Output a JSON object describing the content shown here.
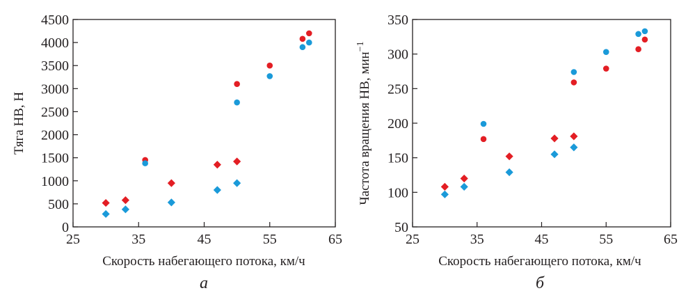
{
  "colors": {
    "red": "#e31e24",
    "blue": "#1a9ad9",
    "axis": "#231f20"
  },
  "chart_data": [
    {
      "type": "scatter",
      "panel_label": "а",
      "xlabel": "Скорость набегающего потока, км/ч",
      "ylabel": "Тяга НВ, Н",
      "xlim": [
        25,
        65
      ],
      "ylim": [
        0,
        4500
      ],
      "xticks": [
        25,
        35,
        45,
        55,
        65
      ],
      "yticks": [
        0,
        500,
        1000,
        1500,
        2000,
        2500,
        3000,
        3500,
        4000,
        4500
      ],
      "xtick_labels": [
        "25",
        "35",
        "45",
        "55",
        "65"
      ],
      "ytick_labels": [
        "0",
        "500",
        "1000",
        "1500",
        "2000",
        "2500",
        "3000",
        "3500",
        "4000",
        "4500"
      ],
      "grid": false,
      "series": [
        {
          "color": "red",
          "marker": "diamond",
          "points": [
            [
              30,
              520
            ],
            [
              33,
              580
            ],
            [
              40,
              950
            ],
            [
              47,
              1350
            ],
            [
              50,
              1420
            ]
          ]
        },
        {
          "color": "blue",
          "marker": "diamond",
          "points": [
            [
              30,
              280
            ],
            [
              33,
              380
            ],
            [
              40,
              530
            ],
            [
              47,
              800
            ],
            [
              50,
              950
            ]
          ]
        },
        {
          "color": "red",
          "marker": "circle",
          "points": [
            [
              36,
              1450
            ],
            [
              50,
              3100
            ],
            [
              55,
              3500
            ],
            [
              60,
              4080
            ],
            [
              61,
              4200
            ]
          ]
        },
        {
          "color": "blue",
          "marker": "circle",
          "points": [
            [
              36,
              1380
            ],
            [
              50,
              2700
            ],
            [
              55,
              3270
            ],
            [
              60,
              3900
            ],
            [
              61,
              4000
            ]
          ]
        }
      ]
    },
    {
      "type": "scatter",
      "panel_label": "б",
      "xlabel": "Скорость набегающего потока, км/ч",
      "ylabel": "Частота вращения НВ, мин",
      "ylabel_sup": "−1",
      "xlim": [
        25,
        65
      ],
      "ylim": [
        50,
        350
      ],
      "xticks": [
        25,
        35,
        45,
        55,
        65
      ],
      "yticks": [
        50,
        100,
        150,
        200,
        250,
        300,
        350
      ],
      "xtick_labels": [
        "25",
        "35",
        "45",
        "55",
        "65"
      ],
      "ytick_labels": [
        "50",
        "100",
        "150",
        "200",
        "250",
        "300",
        "350"
      ],
      "grid": false,
      "series": [
        {
          "color": "red",
          "marker": "diamond",
          "points": [
            [
              30,
              108
            ],
            [
              33,
              120
            ],
            [
              40,
              152
            ],
            [
              47,
              178
            ],
            [
              50,
              181
            ]
          ]
        },
        {
          "color": "blue",
          "marker": "diamond",
          "points": [
            [
              30,
              97
            ],
            [
              33,
              108
            ],
            [
              40,
              129
            ],
            [
              47,
              155
            ],
            [
              50,
              165
            ]
          ]
        },
        {
          "color": "red",
          "marker": "circle",
          "points": [
            [
              36,
              177
            ],
            [
              50,
              259
            ],
            [
              55,
              279
            ],
            [
              60,
              307
            ],
            [
              61,
              321
            ]
          ]
        },
        {
          "color": "blue",
          "marker": "circle",
          "points": [
            [
              36,
              199
            ],
            [
              50,
              274
            ],
            [
              55,
              303
            ],
            [
              60,
              329
            ],
            [
              61,
              333
            ]
          ]
        }
      ]
    }
  ]
}
